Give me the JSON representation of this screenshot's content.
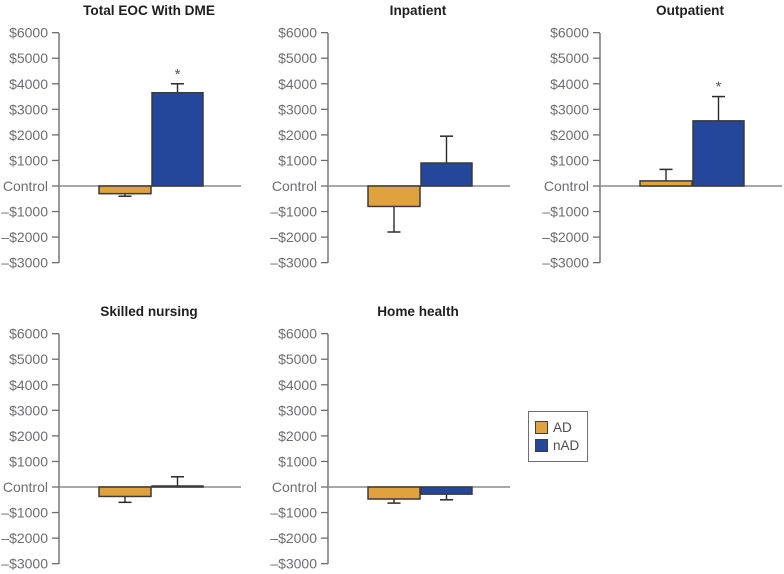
{
  "figure": {
    "background": "#ffffff",
    "description_title_row1": [
      "Total EOC With DME",
      "Inpatient",
      "Outpatient"
    ],
    "description_title_row2": [
      "Skilled nursing",
      "Home health"
    ]
  },
  "palette": {
    "series": {
      "AD": "#DFA23C",
      "nAD": "#24479B"
    },
    "bar_border": "#3A3A3C",
    "axis": "#6D6E71",
    "label": "#6D6E71",
    "baseline": "#8A8C8D",
    "error": "#2A2A2C",
    "title": "#1F1F21",
    "sig": "#54565A"
  },
  "axis": {
    "ymin": -3000,
    "ymax": 6000,
    "zero_label": "Control",
    "tick_values": [
      6000,
      5000,
      4000,
      3000,
      2000,
      1000,
      0,
      -1000,
      -2000,
      -3000
    ],
    "tick_labels": [
      "$6000",
      "$5000",
      "$4000",
      "$3000",
      "$2000",
      "$1000",
      "Control",
      "–$1000",
      "–$2000",
      "–$3000"
    ]
  },
  "legend": {
    "items": [
      {
        "label": "AD",
        "key": "AD"
      },
      {
        "label": "nAD",
        "key": "nAD"
      }
    ]
  },
  "chart_data": [
    {
      "type": "bar",
      "title": "Total EOC With DME",
      "categories": [
        "AD",
        "nAD"
      ],
      "values": [
        -300,
        3650
      ],
      "error_to": [
        -400,
        4000
      ],
      "significance": [
        null,
        "*"
      ],
      "ylim": [
        -3000,
        6000
      ],
      "zero_tick_label": "Control",
      "grid": false
    },
    {
      "type": "bar",
      "title": "Inpatient",
      "categories": [
        "AD",
        "nAD"
      ],
      "values": [
        -800,
        900
      ],
      "error_to": [
        -1800,
        1950
      ],
      "significance": [
        null,
        null
      ],
      "ylim": [
        -3000,
        6000
      ],
      "zero_tick_label": "Control",
      "grid": false
    },
    {
      "type": "bar",
      "title": "Outpatient",
      "categories": [
        "AD",
        "nAD"
      ],
      "values": [
        200,
        2550
      ],
      "error_to": [
        650,
        3500
      ],
      "significance": [
        null,
        "*"
      ],
      "ylim": [
        -3000,
        6000
      ],
      "zero_tick_label": "Control",
      "grid": false
    },
    {
      "type": "bar",
      "title": "Skilled nursing",
      "categories": [
        "AD",
        "nAD"
      ],
      "values": [
        -370,
        40
      ],
      "error_to": [
        -600,
        400
      ],
      "significance": [
        null,
        null
      ],
      "ylim": [
        -3000,
        6000
      ],
      "zero_tick_label": "Control",
      "grid": false
    },
    {
      "type": "bar",
      "title": "Home health",
      "categories": [
        "AD",
        "nAD"
      ],
      "values": [
        -470,
        -280
      ],
      "error_to": [
        -630,
        -500
      ],
      "significance": [
        null,
        null
      ],
      "ylim": [
        -3000,
        6000
      ],
      "zero_tick_label": "Control",
      "grid": false
    }
  ]
}
